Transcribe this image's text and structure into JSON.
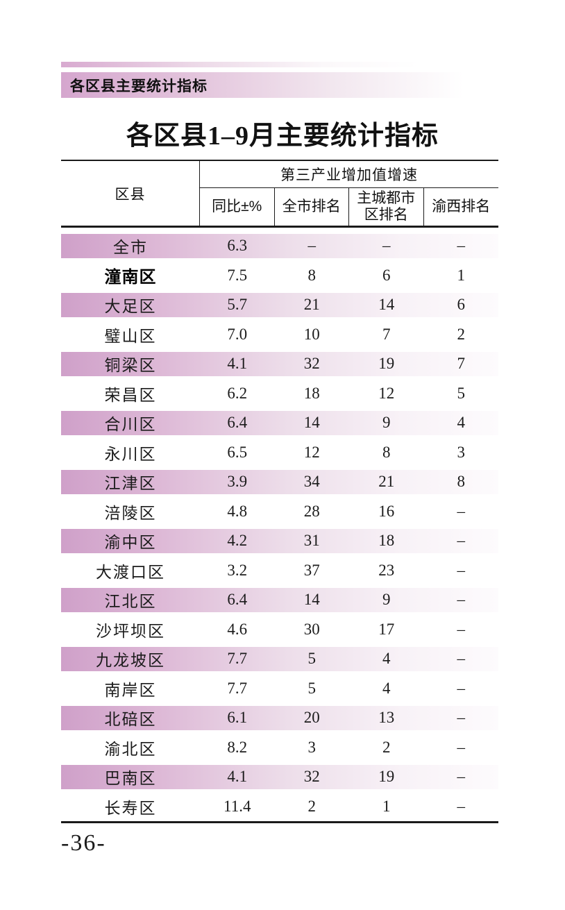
{
  "page": {
    "header_bar": "各区县主要统计指标",
    "title": "各区县1–9月主要统计指标",
    "page_number": "-36-"
  },
  "table": {
    "district_header": "区县",
    "span_header": "第三产业增加值增速",
    "sub_headers": [
      "同比±%",
      "全市排名",
      "主城都市区排名",
      "渝西排名"
    ],
    "rows": [
      {
        "name": "全市",
        "yoy": "6.3",
        "city_rank": "–",
        "metro_rank": "–",
        "yuxi_rank": "–",
        "highlight": false
      },
      {
        "name": "潼南区",
        "yoy": "7.5",
        "city_rank": "8",
        "metro_rank": "6",
        "yuxi_rank": "1",
        "highlight": true
      },
      {
        "name": "大足区",
        "yoy": "5.7",
        "city_rank": "21",
        "metro_rank": "14",
        "yuxi_rank": "6",
        "highlight": false
      },
      {
        "name": "璧山区",
        "yoy": "7.0",
        "city_rank": "10",
        "metro_rank": "7",
        "yuxi_rank": "2",
        "highlight": false
      },
      {
        "name": "铜梁区",
        "yoy": "4.1",
        "city_rank": "32",
        "metro_rank": "19",
        "yuxi_rank": "7",
        "highlight": false
      },
      {
        "name": "荣昌区",
        "yoy": "6.2",
        "city_rank": "18",
        "metro_rank": "12",
        "yuxi_rank": "5",
        "highlight": false
      },
      {
        "name": "合川区",
        "yoy": "6.4",
        "city_rank": "14",
        "metro_rank": "9",
        "yuxi_rank": "4",
        "highlight": false
      },
      {
        "name": "永川区",
        "yoy": "6.5",
        "city_rank": "12",
        "metro_rank": "8",
        "yuxi_rank": "3",
        "highlight": false
      },
      {
        "name": "江津区",
        "yoy": "3.9",
        "city_rank": "34",
        "metro_rank": "21",
        "yuxi_rank": "8",
        "highlight": false
      },
      {
        "name": "涪陵区",
        "yoy": "4.8",
        "city_rank": "28",
        "metro_rank": "16",
        "yuxi_rank": "–",
        "highlight": false
      },
      {
        "name": "渝中区",
        "yoy": "4.2",
        "city_rank": "31",
        "metro_rank": "18",
        "yuxi_rank": "–",
        "highlight": false
      },
      {
        "name": "大渡口区",
        "yoy": "3.2",
        "city_rank": "37",
        "metro_rank": "23",
        "yuxi_rank": "–",
        "highlight": false
      },
      {
        "name": "江北区",
        "yoy": "6.4",
        "city_rank": "14",
        "metro_rank": "9",
        "yuxi_rank": "–",
        "highlight": false
      },
      {
        "name": "沙坪坝区",
        "yoy": "4.6",
        "city_rank": "30",
        "metro_rank": "17",
        "yuxi_rank": "–",
        "highlight": false
      },
      {
        "name": "九龙坡区",
        "yoy": "7.7",
        "city_rank": "5",
        "metro_rank": "4",
        "yuxi_rank": "–",
        "highlight": false
      },
      {
        "name": "南岸区",
        "yoy": "7.7",
        "city_rank": "5",
        "metro_rank": "4",
        "yuxi_rank": "–",
        "highlight": false
      },
      {
        "name": "北碚区",
        "yoy": "6.1",
        "city_rank": "20",
        "metro_rank": "13",
        "yuxi_rank": "–",
        "highlight": false
      },
      {
        "name": "渝北区",
        "yoy": "8.2",
        "city_rank": "3",
        "metro_rank": "2",
        "yuxi_rank": "–",
        "highlight": false
      },
      {
        "name": "巴南区",
        "yoy": "4.1",
        "city_rank": "32",
        "metro_rank": "19",
        "yuxi_rank": "–",
        "highlight": false
      },
      {
        "name": "长寿区",
        "yoy": "11.4",
        "city_rank": "2",
        "metro_rank": "1",
        "yuxi_rank": "–",
        "highlight": false
      }
    ]
  },
  "colors": {
    "accent_pink": "#cfa0c9",
    "header_bar_pink": "#d5a6ce",
    "border_black": "#1a1a1a"
  }
}
